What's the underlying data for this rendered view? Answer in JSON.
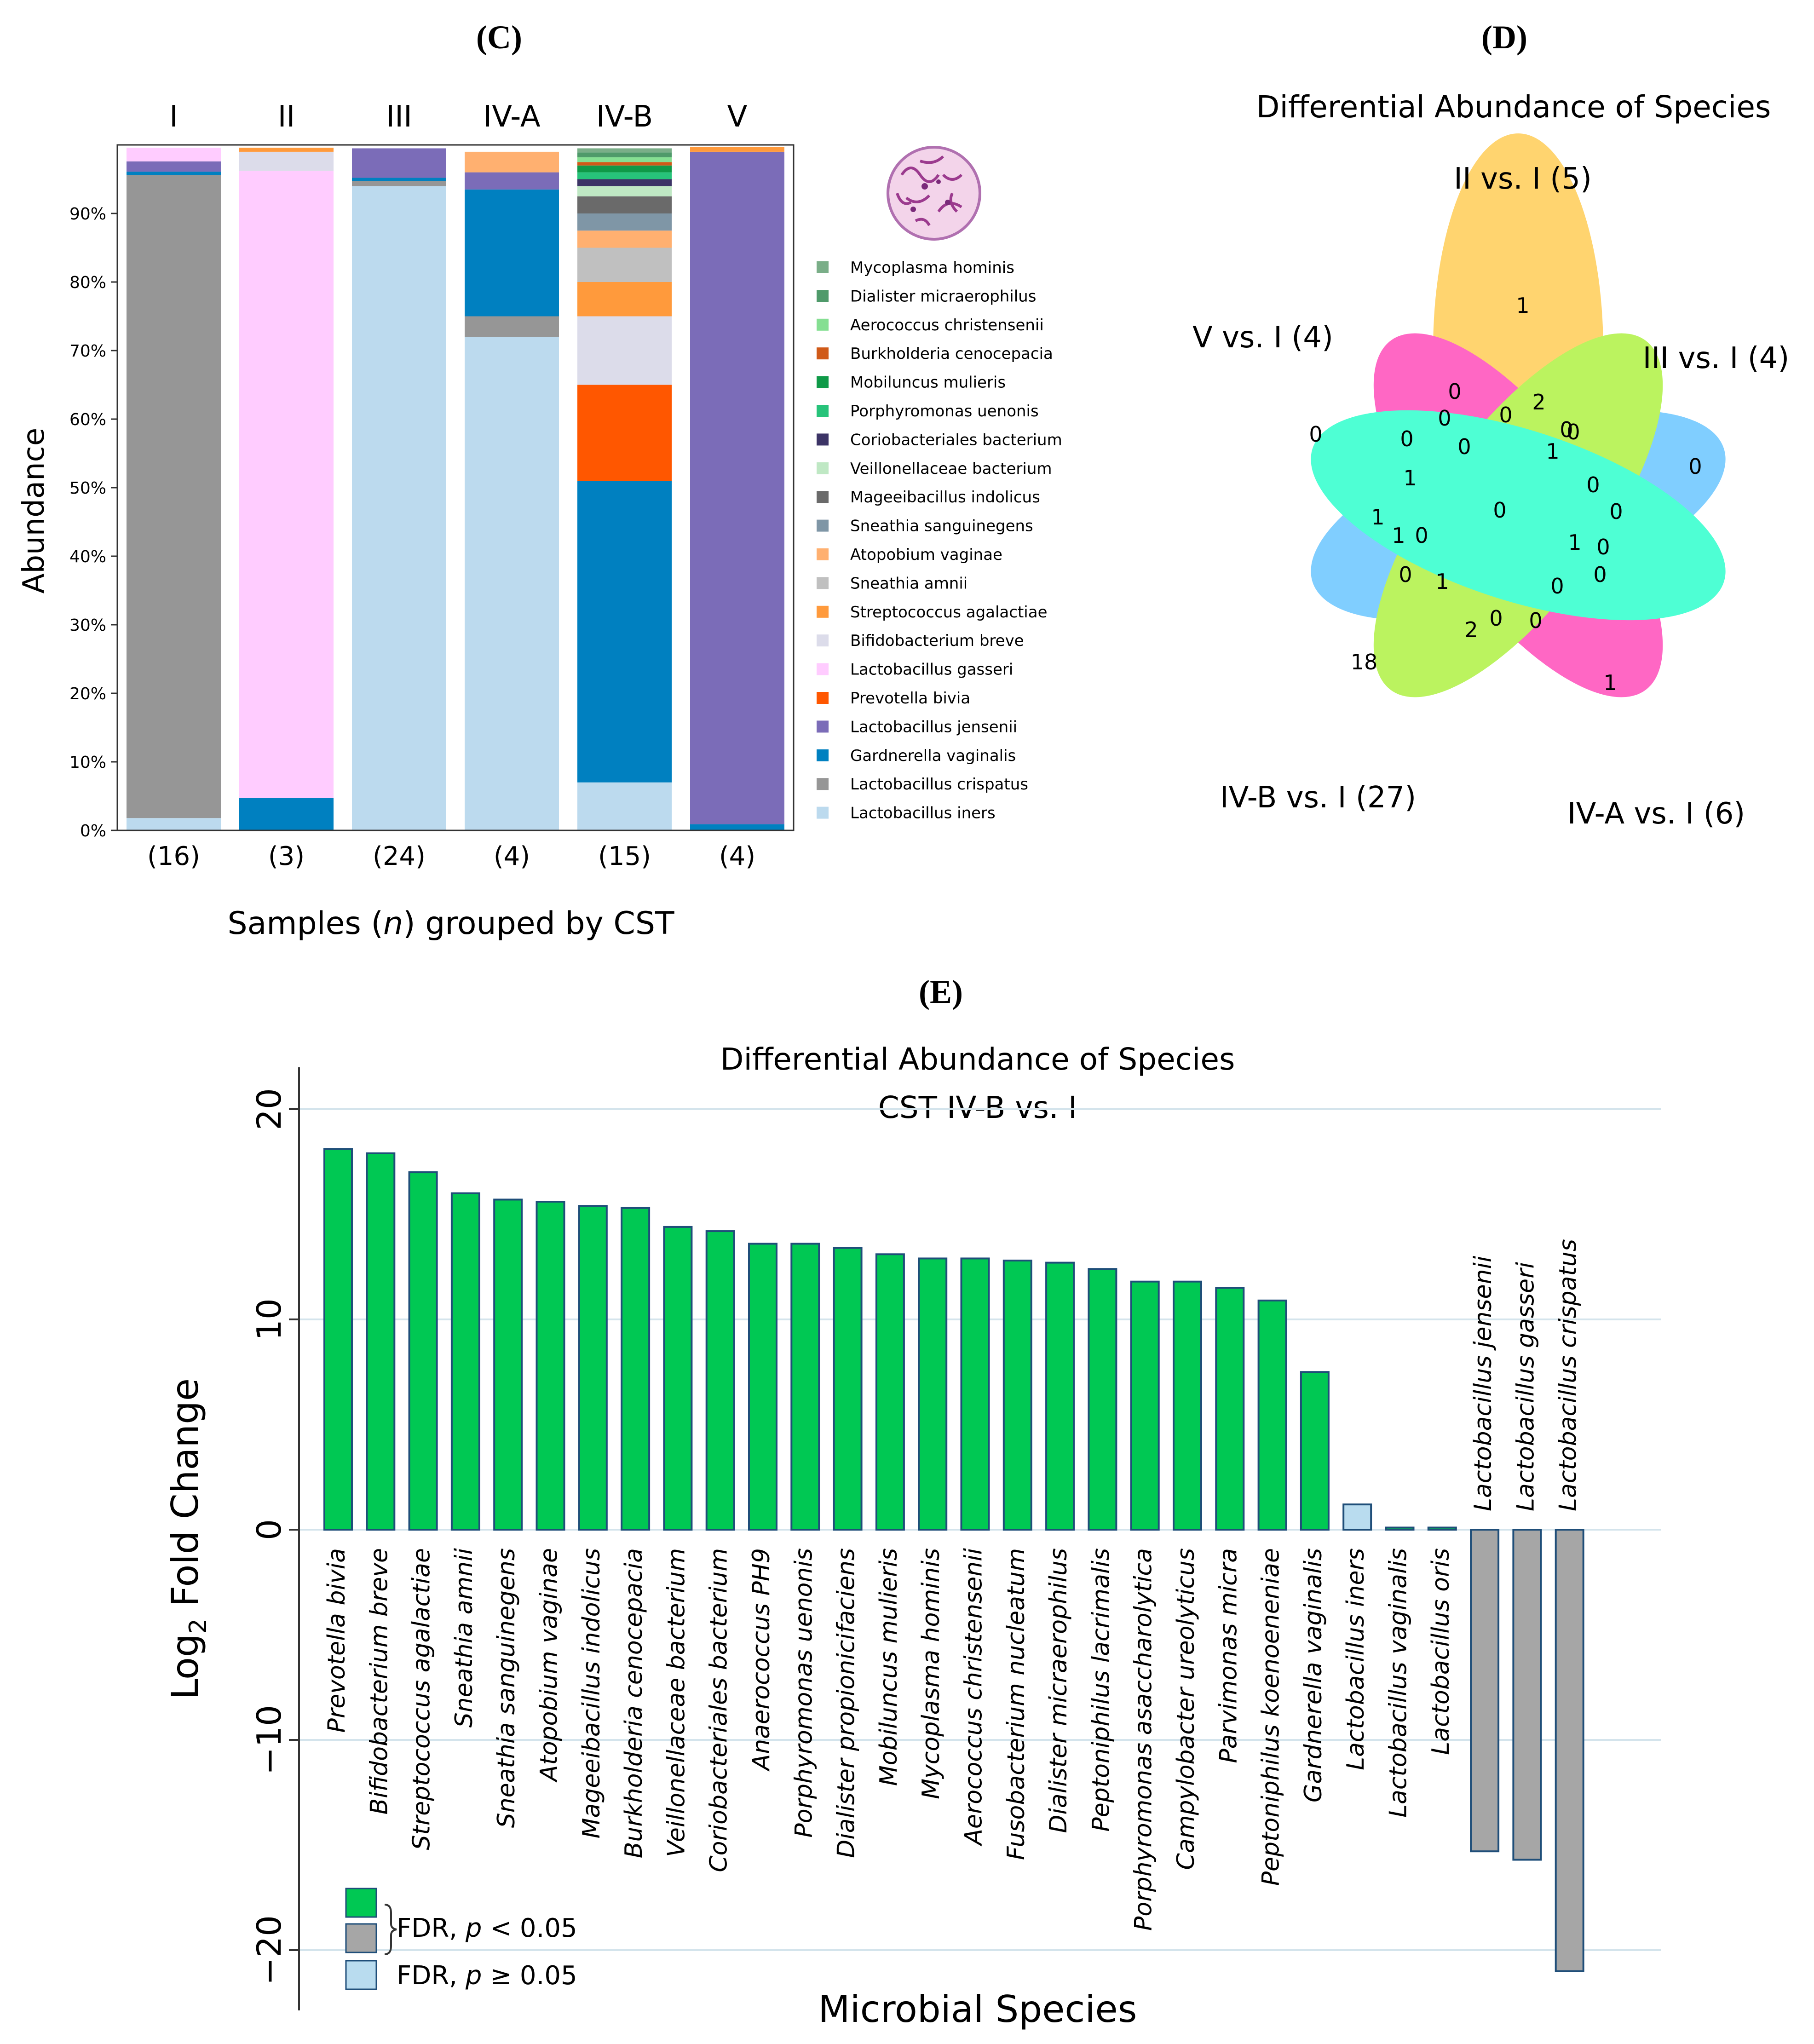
{
  "panels": {
    "c": "(C)",
    "d": "(D)",
    "e": "(E)"
  },
  "chart_data": [
    {
      "id": "panel-c",
      "type": "bar",
      "stacked": true,
      "title": "",
      "xlabel_pre": "Samples (",
      "xlabel_italic": "n",
      "xlabel_post": ") grouped by CST",
      "ylabel": "Abundance",
      "ylim": [
        0,
        100
      ],
      "yticks": [
        0,
        10,
        20,
        30,
        40,
        50,
        60,
        70,
        80,
        90
      ],
      "ytick_labels": [
        "0%",
        "10%",
        "20%",
        "30%",
        "40%",
        "50%",
        "60%",
        "70%",
        "80%",
        "90%"
      ],
      "categories": [
        "I",
        "II",
        "III",
        "IV-A",
        "IV-B",
        "V"
      ],
      "counts": [
        "(16)",
        "(3)",
        "(24)",
        "(4)",
        "(15)",
        "(4)"
      ],
      "legend_position": "right",
      "series": [
        {
          "name": "Lactobacillus iners",
          "color": "#bcdaee",
          "values": [
            1.8,
            0,
            94.0,
            72.0,
            7.0,
            0
          ]
        },
        {
          "name": "Lactobacillus crispatus",
          "color": "#969696",
          "values": [
            93.8,
            0,
            0.7,
            3.0,
            0,
            0
          ]
        },
        {
          "name": "Gardnerella vaginalis",
          "color": "#0080c0",
          "values": [
            0.5,
            4.7,
            0.5,
            18.5,
            44.0,
            0.9
          ]
        },
        {
          "name": "Lactobacillus jensenii",
          "color": "#7b6cb8",
          "values": [
            1.5,
            0,
            4.3,
            2.5,
            0,
            98.1
          ]
        },
        {
          "name": "Prevotella bivia",
          "color": "#ff5700",
          "values": [
            0,
            0,
            0,
            0,
            14.0,
            0
          ]
        },
        {
          "name": "Lactobacillus gasseri",
          "color": "#ffccff",
          "values": [
            2.0,
            91.5,
            0,
            0,
            0,
            0
          ]
        },
        {
          "name": "Bifidobacterium breve",
          "color": "#dcdcea",
          "values": [
            0,
            2.8,
            0,
            0,
            10.0,
            0
          ]
        },
        {
          "name": "Streptococcus agalactiae",
          "color": "#ff9a3c",
          "values": [
            0,
            0.6,
            0,
            0,
            5.0,
            0.7
          ]
        },
        {
          "name": "Sneathia amnii",
          "color": "#c0c0c0",
          "values": [
            0,
            0,
            0,
            0,
            5.0,
            0
          ]
        },
        {
          "name": "Atopobium vaginae",
          "color": "#ffb070",
          "values": [
            0,
            0,
            0,
            3.0,
            2.5,
            0
          ]
        },
        {
          "name": "Sneathia sanguinegens",
          "color": "#7f96a6",
          "values": [
            0,
            0,
            0,
            0,
            2.5,
            0
          ]
        },
        {
          "name": "Mageeibacillus indolicus",
          "color": "#6a6a6a",
          "values": [
            0,
            0,
            0,
            0,
            2.5,
            0
          ]
        },
        {
          "name": "Veillonellaceae bacterium",
          "color": "#bfe8c4",
          "values": [
            0,
            0,
            0,
            0,
            1.5,
            0
          ]
        },
        {
          "name": "Coriobacteriales bacterium",
          "color": "#3c3466",
          "values": [
            0,
            0,
            0,
            0,
            1.0,
            0
          ]
        },
        {
          "name": "Porphyromonas uenonis",
          "color": "#27c37a",
          "values": [
            0,
            0,
            0,
            0,
            1.0,
            0
          ]
        },
        {
          "name": "Mobiluncus mulieris",
          "color": "#0f9a48",
          "values": [
            0,
            0,
            0,
            0,
            1.0,
            0
          ]
        },
        {
          "name": "Burkholderia cenocepacia",
          "color": "#d05a18",
          "values": [
            0,
            0,
            0,
            0,
            0.5,
            0
          ]
        },
        {
          "name": "Aerococcus christensenii",
          "color": "#85df92",
          "values": [
            0,
            0,
            0,
            0,
            0.7,
            0
          ]
        },
        {
          "name": "Dialister micraerophilus",
          "color": "#4f9a6a",
          "values": [
            0,
            0,
            0,
            0,
            0.7,
            0
          ]
        },
        {
          "name": "Mycoplasma hominis",
          "color": "#7aae88",
          "values": [
            0,
            0,
            0,
            0,
            0.6,
            0
          ]
        }
      ],
      "legend_order": [
        "Mycoplasma hominis",
        "Dialister micraerophilus",
        "Aerococcus christensenii",
        "Burkholderia cenocepacia",
        "Mobiluncus mulieris",
        "Porphyromonas uenonis",
        "Coriobacteriales bacterium",
        "Veillonellaceae bacterium",
        "Mageeibacillus indolicus",
        "Sneathia sanguinegens",
        "Atopobium vaginae",
        "Sneathia amnii",
        "Streptococcus agalactiae",
        "Bifidobacterium breve",
        "Lactobacillus gasseri",
        "Prevotella bivia",
        "Lactobacillus jensenii",
        "Gardnerella vaginalis",
        "Lactobacillus crispatus",
        "Lactobacillus iners"
      ]
    },
    {
      "id": "panel-d",
      "type": "venn",
      "title": "Differential Abundance of Species",
      "sets": [
        {
          "name": "II vs. I (5)",
          "color": "#ffc846"
        },
        {
          "name": "III vs. I (4)",
          "color": "#5cc0ff"
        },
        {
          "name": "IV-A vs. I (6)",
          "color": "#ff3cb4"
        },
        {
          "name": "IV-B vs. I (27)",
          "color": "#a8f032"
        },
        {
          "name": "V vs. I (4)",
          "color": "#1cffc8"
        }
      ],
      "region_counts": [
        {
          "region": "II only",
          "value": "1"
        },
        {
          "region": "III only",
          "value": "0"
        },
        {
          "region": "IV-A only",
          "value": "1"
        },
        {
          "region": "IV-B only",
          "value": "18"
        },
        {
          "region": "V only",
          "value": "0"
        },
        {
          "region": "all",
          "value": "0"
        },
        {
          "region": "II-III",
          "value": "2"
        },
        {
          "region": "V-II",
          "value": "0"
        },
        {
          "region": "V-II b",
          "value": "0"
        },
        {
          "region": "V-II c",
          "value": "0"
        },
        {
          "region": "V-II d",
          "value": "0"
        },
        {
          "region": "II-III b",
          "value": "0"
        },
        {
          "region": "II-III c",
          "value": "0"
        },
        {
          "region": "II-III d",
          "value": "1"
        },
        {
          "region": "III-IVA",
          "value": "0"
        },
        {
          "region": "III-IVA b",
          "value": "0"
        },
        {
          "region": "III-IVA c",
          "value": "0"
        },
        {
          "region": "III-IVA d",
          "value": "1"
        },
        {
          "region": "III-IVA e",
          "value": "0"
        },
        {
          "region": "III-IVA f",
          "value": "0"
        },
        {
          "region": "IVA-IVB",
          "value": "0"
        },
        {
          "region": "IVA-IVB b",
          "value": "0"
        },
        {
          "region": "IVA-IVB c",
          "value": "0"
        },
        {
          "region": "IVA-IVB d",
          "value": "2"
        },
        {
          "region": "IVB-V",
          "value": "1"
        },
        {
          "region": "IVB-V b",
          "value": "1"
        },
        {
          "region": "IVB-V c",
          "value": "1"
        },
        {
          "region": "IVB-V d",
          "value": "0"
        },
        {
          "region": "IVB-V e",
          "value": "0"
        },
        {
          "region": "IVB-V f",
          "value": "1"
        }
      ]
    },
    {
      "id": "panel-e",
      "type": "bar",
      "title": "Differential Abundance of Species",
      "subtitle": "CST IV-B vs. I",
      "xlabel": "Microbial Species",
      "ylabel_pre": "Log",
      "ylabel_sub": "2",
      "ylabel_post": " Fold Change",
      "ylim": [
        -21.5,
        22
      ],
      "yticks": [
        -20,
        -10,
        0,
        10,
        20
      ],
      "ytick_labels": [
        "−20",
        "−10",
        "0",
        "10",
        "20"
      ],
      "categories": [
        "Prevotella bivia",
        "Bifidobacterium breve",
        "Streptococcus agalactiae",
        "Sneathia amnii",
        "Sneathia sanguinegens",
        "Atopobium vaginae",
        "Mageeibacillus indolicus",
        "Burkholderia cenocepacia",
        "Veillonellaceae bacterium",
        "Coriobacteriales bacterium",
        "Anaerococcus PH9",
        "Porphyromonas uenonis",
        "Dialister propionicifaciens",
        "Mobiluncus mulieris",
        "Mycoplasma hominis",
        "Aerococcus christensenii",
        "Fusobacterium nucleatum",
        "Dialister micraerophilus",
        "Peptoniphilus lacrimalis",
        "Porphyromonas asaccharolytica",
        "Campylobacter ureolyticus",
        "Parvimonas micra",
        "Peptoniphilus koenoeneniae",
        "Gardnerella vaginalis",
        "Lactobacillus iners",
        "Lactobacillus vaginalis",
        "Lactobacillus oris",
        "Lactobacillus jensenii",
        "Lactobacillus gasseri",
        "Lactobacillus crispatus"
      ],
      "values": [
        18.1,
        17.9,
        17.0,
        16.0,
        15.7,
        15.6,
        15.4,
        15.3,
        14.4,
        14.2,
        13.6,
        13.6,
        13.4,
        13.1,
        12.9,
        12.9,
        12.8,
        12.7,
        12.4,
        11.8,
        11.8,
        11.5,
        10.9,
        7.5,
        1.2,
        0.1,
        0.1,
        -15.3,
        -15.7,
        -21.0
      ],
      "significance": [
        "sig",
        "sig",
        "sig",
        "sig",
        "sig",
        "sig",
        "sig",
        "sig",
        "sig",
        "sig",
        "sig",
        "sig",
        "sig",
        "sig",
        "sig",
        "sig",
        "sig",
        "sig",
        "sig",
        "sig",
        "sig",
        "sig",
        "sig",
        "sig",
        "ns",
        "sig",
        "sig",
        "sig",
        "sig",
        "sig"
      ],
      "colors": {
        "sig_up": "#00c853",
        "sig_down": "#a6a6a6",
        "ns": "#b9dcef",
        "edge": "#1f4e79"
      },
      "legend": {
        "sig_pre": "FDR, ",
        "sig_p": "p",
        "sig_post": " < 0.05",
        "ns_pre": "FDR, ",
        "ns_p": "p",
        "ns_post": " ≥ 0.05"
      }
    }
  ]
}
